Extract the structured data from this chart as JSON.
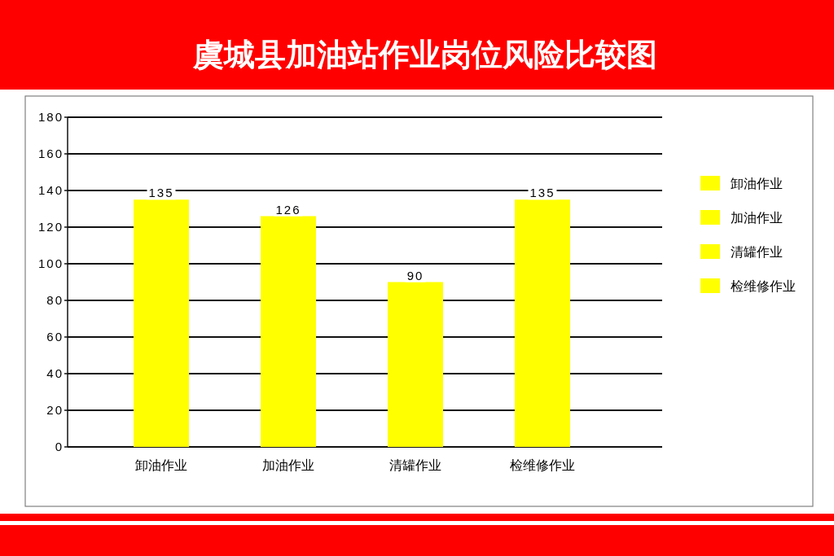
{
  "chart_data": {
    "type": "bar",
    "title": "虞城县加油站作业岗位风险比较图",
    "categories": [
      "卸油作业",
      "加油作业",
      "清罐作业",
      "检维修作业"
    ],
    "series": [
      {
        "name": "卸油作业",
        "color": "#ffff00",
        "values": [
          135,
          null,
          null,
          null
        ]
      },
      {
        "name": "加油作业",
        "color": "#ffff00",
        "values": [
          null,
          126,
          null,
          null
        ]
      },
      {
        "name": "清罐作业",
        "color": "#ffff00",
        "values": [
          null,
          null,
          90,
          null
        ]
      },
      {
        "name": "检维修作业",
        "color": "#ffff00",
        "values": [
          null,
          null,
          null,
          135
        ]
      }
    ],
    "stacked": true,
    "ylim": [
      0,
      180
    ],
    "yticks": [
      0,
      20,
      40,
      60,
      80,
      100,
      120,
      140,
      160,
      180
    ],
    "grid": "y",
    "legend": "right",
    "data_labels": true
  }
}
